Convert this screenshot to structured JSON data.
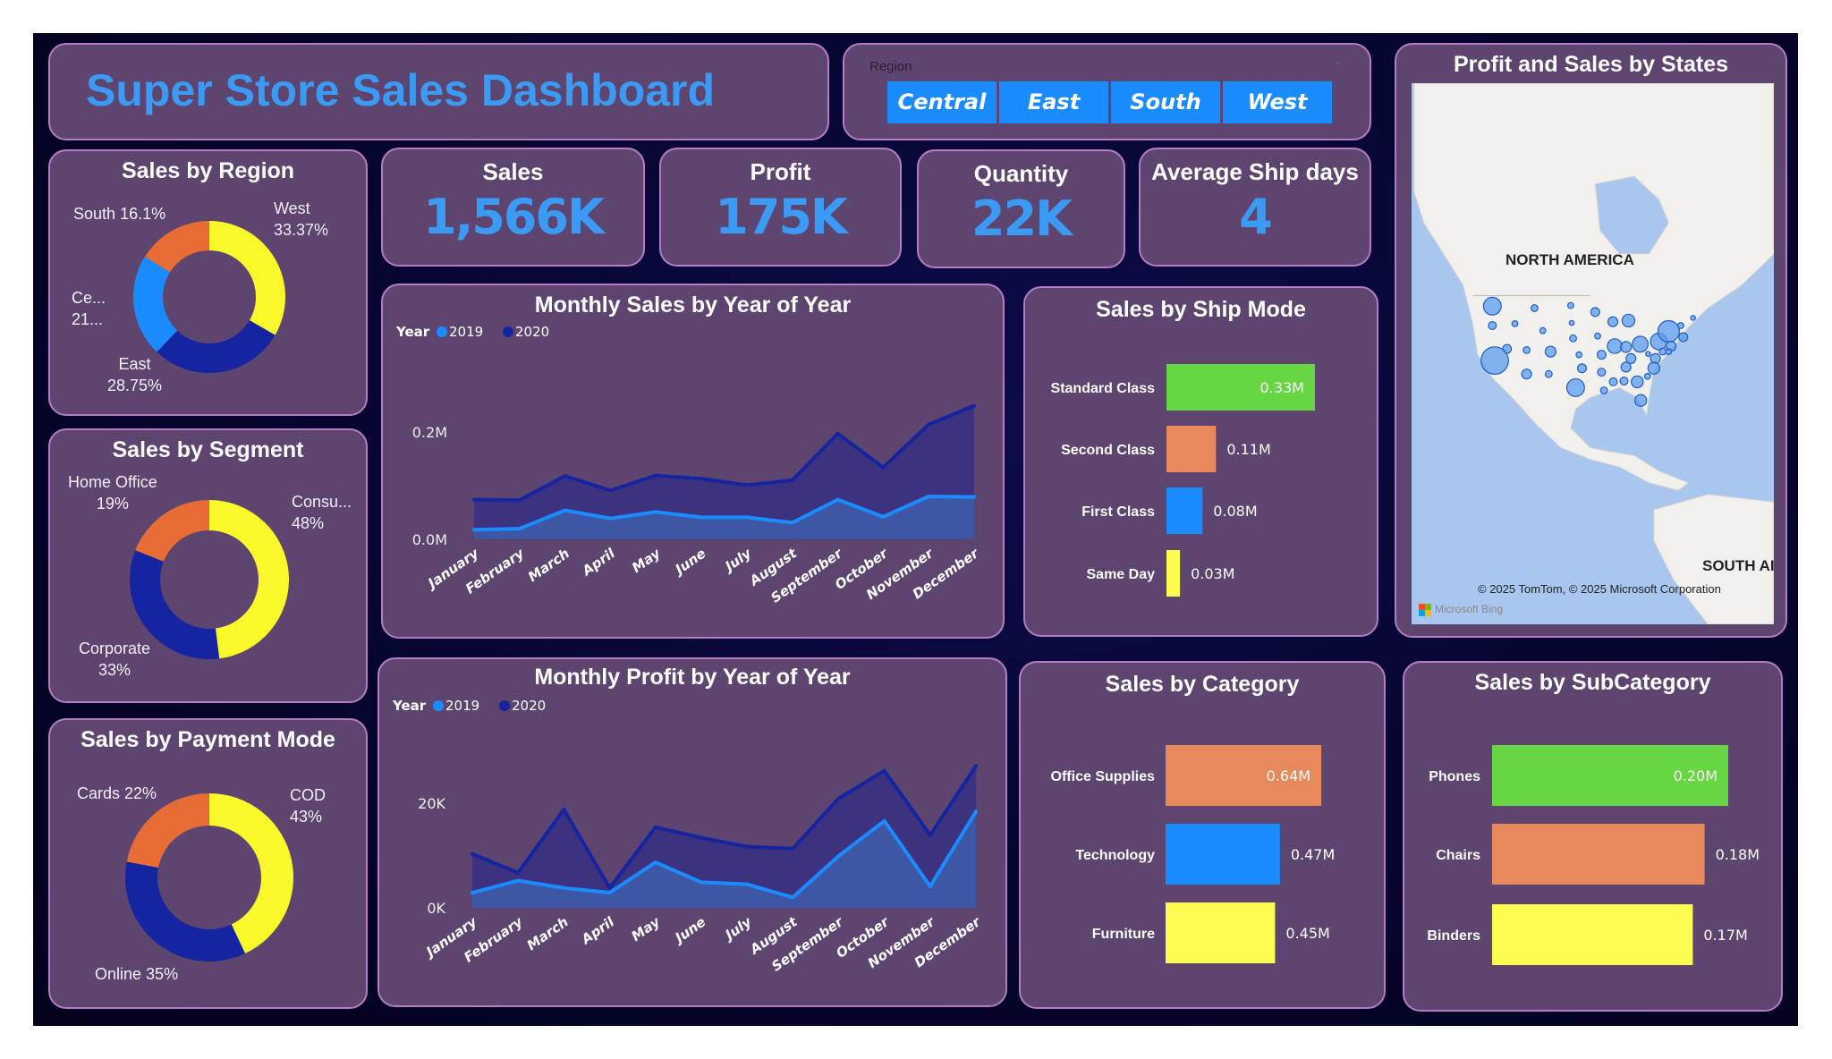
{
  "header": {
    "title": "Super Store Sales Dashboard"
  },
  "slicer": {
    "label": "Region",
    "options": [
      "Central",
      "East",
      "South",
      "West"
    ],
    "button_color": "#1a8cff"
  },
  "kpis": [
    {
      "title": "Sales",
      "value": "1,566K"
    },
    {
      "title": "Profit",
      "value": "175K"
    },
    {
      "title": "Quantity",
      "value": "22K"
    },
    {
      "title": "Average Ship days",
      "value": "4"
    }
  ],
  "colors": {
    "accent": "#3b9af4",
    "panel": "#5d4570",
    "border": "#b57bc6",
    "yellow": "#f8f82a",
    "navy": "#1524a0",
    "blue": "#1a8cff",
    "orange": "#e86c35",
    "green": "#66d642",
    "salmon": "#e8895c",
    "bar_yellow": "#fbfb50"
  },
  "map": {
    "title": "Profit and Sales by States",
    "label_na": "NORTH AMERICA",
    "label_sa": "SOUTH AI",
    "attribution": "© 2025 TomTom, © 2025 Microsoft Corporation",
    "logo_text": "Microsoft Bing"
  },
  "chart_data": [
    {
      "id": "region",
      "type": "pie",
      "title": "Sales by Region",
      "donut": true,
      "slices": [
        {
          "name": "West",
          "value": 33.37,
          "label": "West",
          "pct": "33.37%",
          "color": "#f8f82a"
        },
        {
          "name": "East",
          "value": 28.75,
          "label": "East",
          "pct": "28.75%",
          "color": "#1524a0"
        },
        {
          "name": "Central",
          "value": 21.78,
          "label": "Ce...",
          "pct": "21...",
          "color": "#1a8cff"
        },
        {
          "name": "South",
          "value": 16.1,
          "label": "South",
          "pct": "16.1%",
          "color": "#e86c35"
        }
      ]
    },
    {
      "id": "segment",
      "type": "pie",
      "title": "Sales by Segment",
      "donut": true,
      "slices": [
        {
          "name": "Consumer",
          "value": 48,
          "label": "Consu...",
          "pct": "48%",
          "color": "#f8f82a"
        },
        {
          "name": "Corporate",
          "value": 33,
          "label": "Corporate",
          "pct": "33%",
          "color": "#1524a0"
        },
        {
          "name": "Home Office",
          "value": 19,
          "label": "Home Office",
          "pct": "19%",
          "color": "#e86c35"
        }
      ]
    },
    {
      "id": "payment",
      "type": "pie",
      "title": "Sales by Payment Mode",
      "donut": true,
      "slices": [
        {
          "name": "COD",
          "value": 43,
          "label": "COD",
          "pct": "43%",
          "color": "#f8f82a"
        },
        {
          "name": "Online",
          "value": 35,
          "label": "Online",
          "pct": "35%",
          "color": "#1524a0"
        },
        {
          "name": "Cards",
          "value": 22,
          "label": "Cards",
          "pct": "22%",
          "color": "#e86c35"
        }
      ]
    },
    {
      "id": "monthly_sales",
      "type": "area",
      "title": "Monthly Sales by Year of Year",
      "legend_title": "Year",
      "legend": "top-left",
      "categories": [
        "January",
        "February",
        "March",
        "April",
        "May",
        "June",
        "July",
        "August",
        "September",
        "October",
        "November",
        "December"
      ],
      "ylim": [
        0,
        0.25
      ],
      "yticks": [
        {
          "v": 0,
          "label": "0.0M"
        },
        {
          "v": 0.2,
          "label": "0.2M"
        }
      ],
      "grid": false,
      "series": [
        {
          "name": "2020",
          "color": "#1524a0",
          "values": [
            0.074,
            0.073,
            0.118,
            0.091,
            0.119,
            0.113,
            0.101,
            0.11,
            0.197,
            0.134,
            0.214,
            0.249
          ]
        },
        {
          "name": "2019",
          "color": "#1a8cff",
          "values": [
            0.018,
            0.02,
            0.054,
            0.039,
            0.051,
            0.041,
            0.041,
            0.031,
            0.074,
            0.042,
            0.08,
            0.079
          ]
        }
      ]
    },
    {
      "id": "monthly_profit",
      "type": "area",
      "title": "Monthly Profit by Year of Year",
      "legend_title": "Year",
      "legend": "top-left",
      "categories": [
        "January",
        "February",
        "March",
        "April",
        "May",
        "June",
        "July",
        "August",
        "September",
        "October",
        "November",
        "December"
      ],
      "ylim": [
        0,
        30000
      ],
      "yticks": [
        {
          "v": 0,
          "label": "0K"
        },
        {
          "v": 20000,
          "label": "20K"
        }
      ],
      "grid": false,
      "series": [
        {
          "name": "2020",
          "color": "#1524a0",
          "values": [
            10300,
            6700,
            18800,
            3800,
            15400,
            13400,
            11700,
            11300,
            20900,
            26200,
            13900,
            27100
          ]
        },
        {
          "name": "2019",
          "color": "#1a8cff",
          "values": [
            2900,
            5200,
            3800,
            2900,
            8700,
            4900,
            4500,
            2000,
            9900,
            16600,
            4100,
            18400
          ]
        }
      ]
    },
    {
      "id": "ship_mode",
      "type": "bar",
      "title": "Sales by Ship Mode",
      "orientation": "horizontal",
      "categories": [
        "Standard Class",
        "Second Class",
        "First Class",
        "Same Day"
      ],
      "values": [
        0.33,
        0.11,
        0.08,
        0.03
      ],
      "labels": [
        "0.33M",
        "0.11M",
        "0.08M",
        "0.03M"
      ],
      "colors": [
        "#66d642",
        "#e8895c",
        "#1a8cff",
        "#fbfb50"
      ]
    },
    {
      "id": "category",
      "type": "bar",
      "title": "Sales by Category",
      "orientation": "horizontal",
      "categories": [
        "Office Supplies",
        "Technology",
        "Furniture"
      ],
      "values": [
        0.64,
        0.47,
        0.45
      ],
      "labels": [
        "0.64M",
        "0.47M",
        "0.45M"
      ],
      "colors": [
        "#e8895c",
        "#1a8cff",
        "#fbfb50"
      ]
    },
    {
      "id": "subcategory",
      "type": "bar",
      "title": "Sales by SubCategory",
      "orientation": "horizontal",
      "categories": [
        "Phones",
        "Chairs",
        "Binders"
      ],
      "values": [
        0.2,
        0.18,
        0.17
      ],
      "labels": [
        "0.20M",
        "0.18M",
        "0.17M"
      ],
      "colors": [
        "#66d642",
        "#e8895c",
        "#fbfb50"
      ]
    }
  ]
}
